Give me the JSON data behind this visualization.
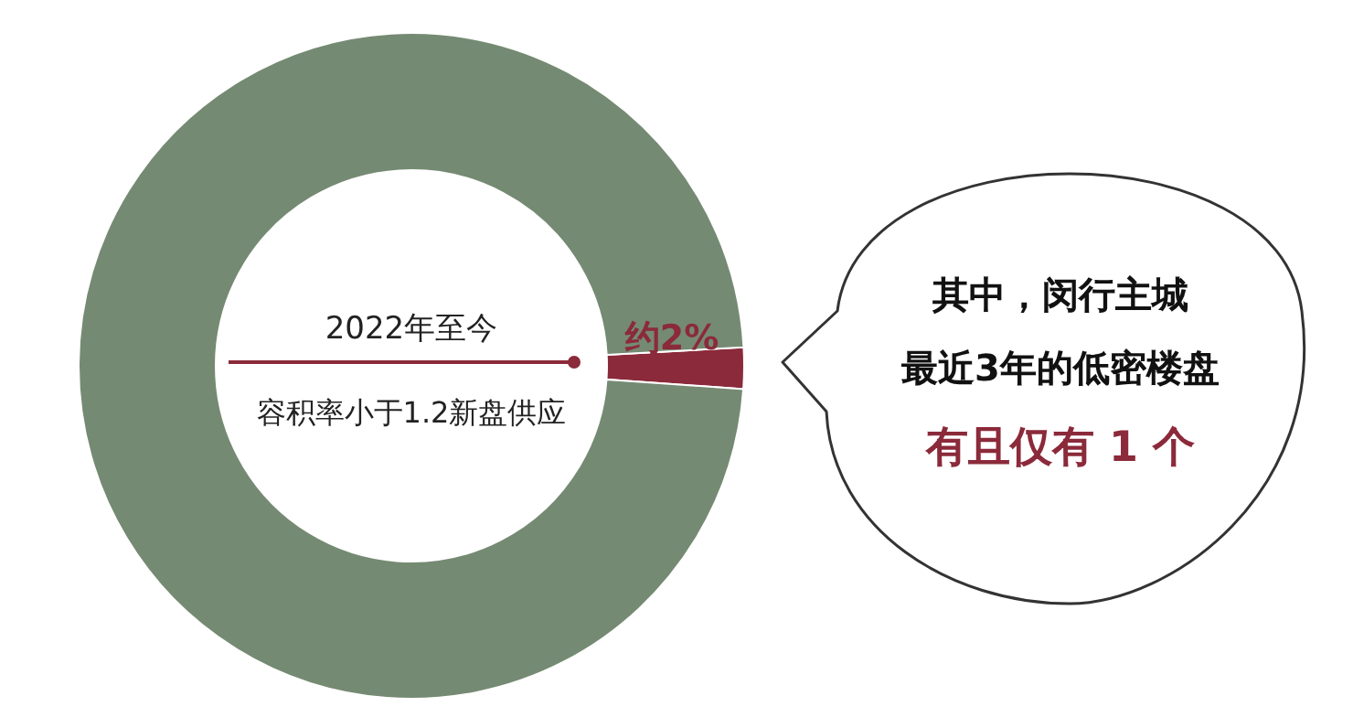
{
  "chart_data": {
    "type": "donut",
    "categories": [
      null,
      null
    ],
    "values": [
      2,
      98
    ],
    "colors": [
      "#8b2a3a",
      "#758a72"
    ],
    "value_labels": [
      "约2%",
      null
    ],
    "annotations": [
      "2022年至今",
      "容积率小于1.2新盘供应",
      "其中，闵行主城",
      "最近3年的低密楼盘",
      "有且仅有 1 个"
    ]
  }
}
